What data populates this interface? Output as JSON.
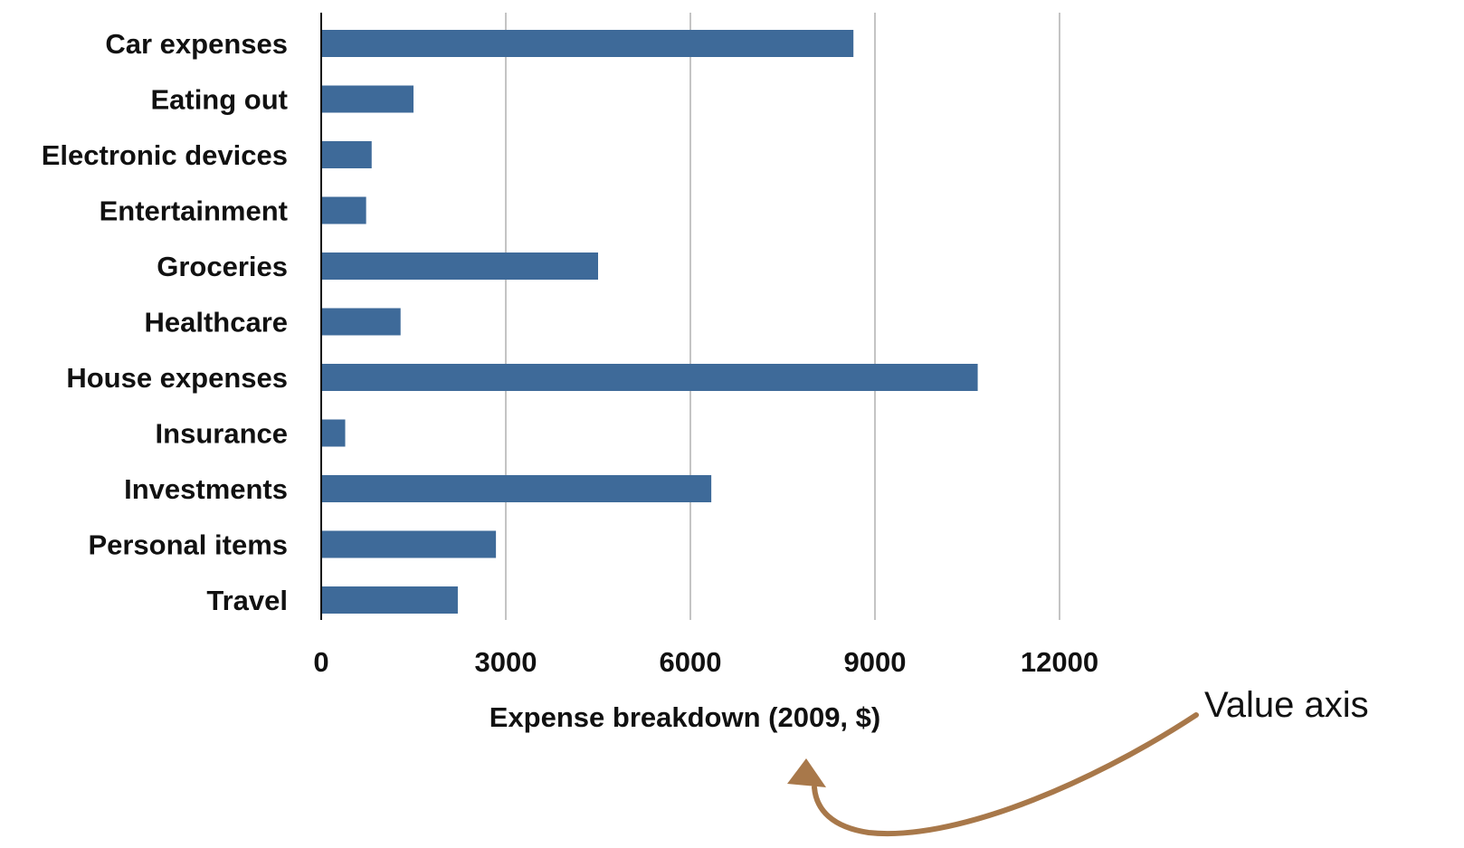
{
  "chart_data": {
    "type": "bar",
    "orientation": "horizontal",
    "title": "",
    "xlabel": "Expense breakdown (2009, $)",
    "ylabel": "",
    "categories": [
      "Car expenses",
      "Eating out",
      "Electronic devices",
      "Entertainment",
      "Groceries",
      "Healthcare",
      "House expenses",
      "Insurance",
      "Investments",
      "Personal items",
      "Travel"
    ],
    "values": [
      8650,
      1500,
      820,
      730,
      4500,
      1290,
      10670,
      390,
      6340,
      2840,
      2220
    ],
    "xlim": [
      0,
      12000
    ],
    "xticks": [
      "0",
      "3000",
      "6000",
      "9000",
      "12000"
    ],
    "xtick_values": [
      0,
      3000,
      6000,
      9000,
      12000
    ],
    "grid": "vertical",
    "bar_color": "#3e6a99",
    "annotation": {
      "text": "Value axis",
      "arrow_color": "#a8784a"
    }
  }
}
